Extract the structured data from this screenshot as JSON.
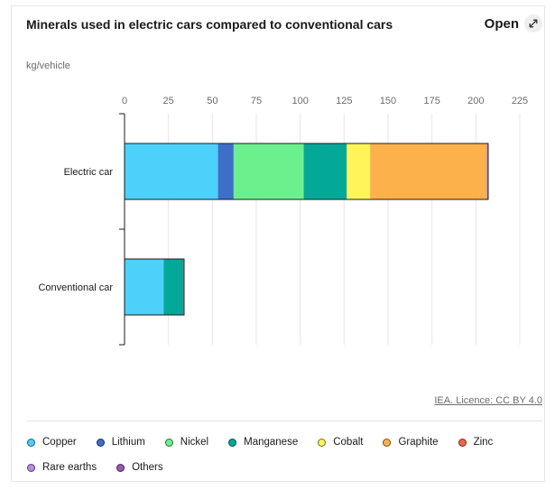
{
  "header": {
    "title": "Minerals used in electric cars compared to conventional cars",
    "open_label": "Open"
  },
  "footer": {
    "licence": "IEA. Licence: CC BY 4.0"
  },
  "chart_data": {
    "type": "bar",
    "orientation": "horizontal",
    "stacked": true,
    "ylabel": "kg/vehicle",
    "xlim": [
      0,
      225
    ],
    "ticks": [
      "0",
      "25",
      "50",
      "75",
      "100",
      "125",
      "150",
      "175",
      "200",
      "225"
    ],
    "grid": true,
    "legend_position": "bottom",
    "categories": [
      "Electric car",
      "Conventional car"
    ],
    "series": [
      {
        "name": "Copper",
        "color": "#4dd0fa",
        "values": [
          53.2,
          22.3
        ]
      },
      {
        "name": "Lithium",
        "color": "#3d6fc6",
        "values": [
          8.9,
          0
        ]
      },
      {
        "name": "Nickel",
        "color": "#6cf08d",
        "values": [
          39.9,
          0
        ]
      },
      {
        "name": "Manganese",
        "color": "#03a899",
        "values": [
          24.5,
          11.2
        ]
      },
      {
        "name": "Cobalt",
        "color": "#fff45a",
        "values": [
          13.3,
          0
        ]
      },
      {
        "name": "Graphite",
        "color": "#fdb14a",
        "values": [
          66.3,
          0
        ]
      },
      {
        "name": "Zinc",
        "color": "#f0684a",
        "values": [
          0.1,
          0.1
        ]
      },
      {
        "name": "Rare earths",
        "color": "#b889e8",
        "values": [
          0.5,
          0
        ]
      },
      {
        "name": "Others",
        "color": "#9b59b6",
        "values": [
          0.3,
          0.3
        ]
      }
    ]
  }
}
